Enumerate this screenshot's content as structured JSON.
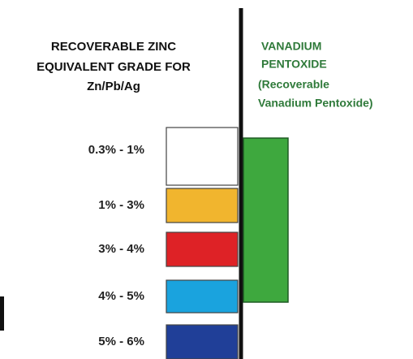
{
  "left_header": {
    "lines": [
      "RECOVERABLE ZINC",
      "EQUIVALENT GRADE FOR",
      "Zn/Pb/Ag"
    ]
  },
  "right_header": {
    "lines": [
      "VANADIUM",
      "PENTOXIDE",
      "(Recoverable",
      "Vanadium Pentoxide)"
    ]
  },
  "grades": [
    {
      "label": "0.3% - 1%",
      "color": "#ffffff"
    },
    {
      "label": "1% - 3%",
      "color": "#f1b52e"
    },
    {
      "label": "3% - 4%",
      "color": "#de2226"
    },
    {
      "label": "4% - 5%",
      "color": "#1aa3de"
    },
    {
      "label": "5% - 6%",
      "color": "#203f98"
    }
  ],
  "vanadium": {
    "color": "#3ea83e"
  }
}
